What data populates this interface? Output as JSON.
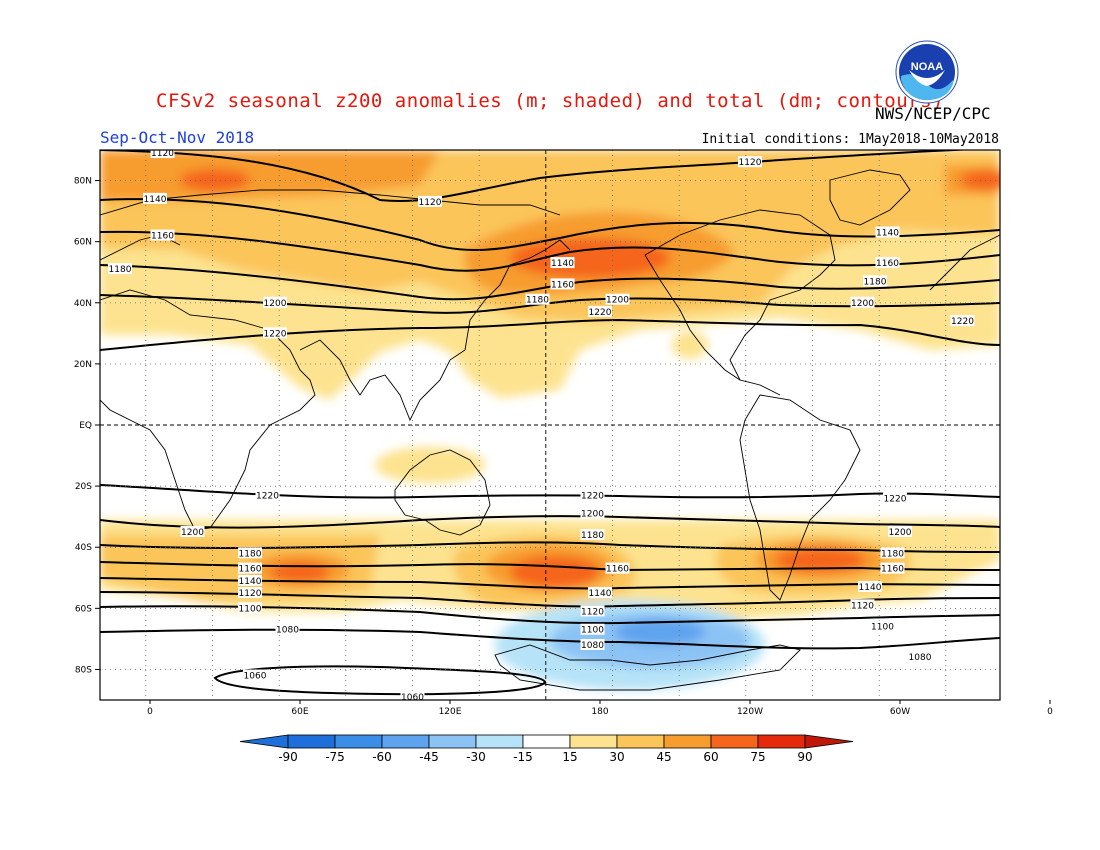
{
  "header": {
    "title": "CFSv2 seasonal z200 anomalies (m; shaded) and total (dm; contours)",
    "agency": "NWS/NCEP/CPC",
    "season": "Sep-Oct-Nov 2018",
    "initial_conditions": "Initial conditions: 1May2018-10May2018",
    "logo_text": "NOAA"
  },
  "map": {
    "projection": "cylindrical equidistant",
    "lat_ticks": [
      "80N",
      "60N",
      "40N",
      "20N",
      "EQ",
      "20S",
      "40S",
      "60S",
      "80S"
    ],
    "lon_ticks": [
      "0",
      "60E",
      "120E",
      "180",
      "120W",
      "60W",
      "0"
    ]
  },
  "contours": {
    "units": "dm",
    "labels": [
      {
        "text": "1120",
        "lon": 5,
        "lat": 89
      },
      {
        "text": "1140",
        "lon": 2,
        "lat": 74
      },
      {
        "text": "1160",
        "lon": 5,
        "lat": 62
      },
      {
        "text": "1180",
        "lon": -12,
        "lat": 51
      },
      {
        "text": "1200",
        "lon": 50,
        "lat": 40
      },
      {
        "text": "1220",
        "lon": 50,
        "lat": 30
      },
      {
        "text": "1120",
        "lon": 112,
        "lat": 73
      },
      {
        "text": "1140",
        "lon": 165,
        "lat": 53
      },
      {
        "text": "1160",
        "lon": 165,
        "lat": 46
      },
      {
        "text": "1180",
        "lon": 155,
        "lat": 41
      },
      {
        "text": "1200",
        "lon": 187,
        "lat": 41
      },
      {
        "text": "1220",
        "lon": 180,
        "lat": 37
      },
      {
        "text": "1120",
        "lon": 240,
        "lat": 86
      },
      {
        "text": "1140",
        "lon": 295,
        "lat": 63
      },
      {
        "text": "1160",
        "lon": 295,
        "lat": 53
      },
      {
        "text": "1180",
        "lon": 290,
        "lat": 47
      },
      {
        "text": "1200",
        "lon": 285,
        "lat": 40
      },
      {
        "text": "1220",
        "lon": 325,
        "lat": 34
      },
      {
        "text": "1220",
        "lon": 47,
        "lat": -23
      },
      {
        "text": "1220",
        "lon": 177,
        "lat": -23
      },
      {
        "text": "1220",
        "lon": 298,
        "lat": -24
      },
      {
        "text": "1200",
        "lon": 17,
        "lat": -35
      },
      {
        "text": "1200",
        "lon": 177,
        "lat": -29
      },
      {
        "text": "1200",
        "lon": 300,
        "lat": -35
      },
      {
        "text": "1180",
        "lon": 40,
        "lat": -42
      },
      {
        "text": "1180",
        "lon": 177,
        "lat": -36
      },
      {
        "text": "1180",
        "lon": 297,
        "lat": -42
      },
      {
        "text": "1160",
        "lon": 40,
        "lat": -47
      },
      {
        "text": "1160",
        "lon": 187,
        "lat": -47
      },
      {
        "text": "1160",
        "lon": 297,
        "lat": -47
      },
      {
        "text": "1140",
        "lon": 40,
        "lat": -51
      },
      {
        "text": "1140",
        "lon": 180,
        "lat": -55
      },
      {
        "text": "1140",
        "lon": 288,
        "lat": -53
      },
      {
        "text": "1120",
        "lon": 40,
        "lat": -55
      },
      {
        "text": "1120",
        "lon": 177,
        "lat": -61
      },
      {
        "text": "1120",
        "lon": 285,
        "lat": -59
      },
      {
        "text": "1100",
        "lon": 40,
        "lat": -60
      },
      {
        "text": "1100",
        "lon": 177,
        "lat": -67
      },
      {
        "text": "1100",
        "lon": 293,
        "lat": -66
      },
      {
        "text": "1080",
        "lon": 55,
        "lat": -67
      },
      {
        "text": "1080",
        "lon": 177,
        "lat": -72
      },
      {
        "text": "1080",
        "lon": 308,
        "lat": -76
      },
      {
        "text": "1060",
        "lon": 42,
        "lat": -82
      },
      {
        "text": "1060",
        "lon": 105,
        "lat": -89
      }
    ]
  },
  "colorbar": {
    "units": "m",
    "labels": [
      "-90",
      "-75",
      "-60",
      "-45",
      "-30",
      "-15",
      "15",
      "30",
      "45",
      "60",
      "75",
      "90"
    ],
    "colors": [
      "#1e6fd9",
      "#3a8ee8",
      "#5ea3ef",
      "#8cc3f5",
      "#b6e3f7",
      "#ffffff",
      "#fde38f",
      "#fbc55a",
      "#f79c2f",
      "#f5651c",
      "#e52a0c",
      "#c01808"
    ]
  },
  "colors": {
    "title": "#e8150b",
    "season": "#1f3fe0",
    "anomaly_positive_light": "#fde38f",
    "anomaly_positive_med": "#fbc55a",
    "anomaly_positive_strong": "#f79c2f",
    "anomaly_positive_max": "#f5651c",
    "anomaly_negative": "#8cc3f5",
    "anomaly_negative_strong": "#5ea3ef"
  }
}
